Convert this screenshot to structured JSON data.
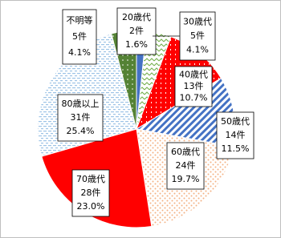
{
  "chart_data": {
    "type": "pie",
    "categories": [
      "20歳代",
      "30歳代",
      "40歳代",
      "50歳代",
      "60歳代",
      "70歳代",
      "80歳以上",
      "不明等"
    ],
    "values": [
      1.6,
      4.1,
      10.7,
      11.5,
      19.7,
      23.0,
      25.4,
      4.1
    ],
    "value_labels": [
      "1.6%",
      "4.1%",
      "10.7%",
      "11.5%",
      "19.7%",
      "23.0%",
      "25.4%",
      "4.1%"
    ],
    "counts": [
      2,
      5,
      13,
      14,
      24,
      28,
      31,
      5
    ],
    "count_labels": [
      "2件",
      "5件",
      "13件",
      "14件",
      "24件",
      "28件",
      "31件",
      "5件"
    ],
    "colors": [
      "#4472c4",
      "#70ad47",
      "#ff0000",
      "#4472c4",
      "#f4b183",
      "#ff0000",
      "#9dc3e6",
      "#548235"
    ]
  }
}
